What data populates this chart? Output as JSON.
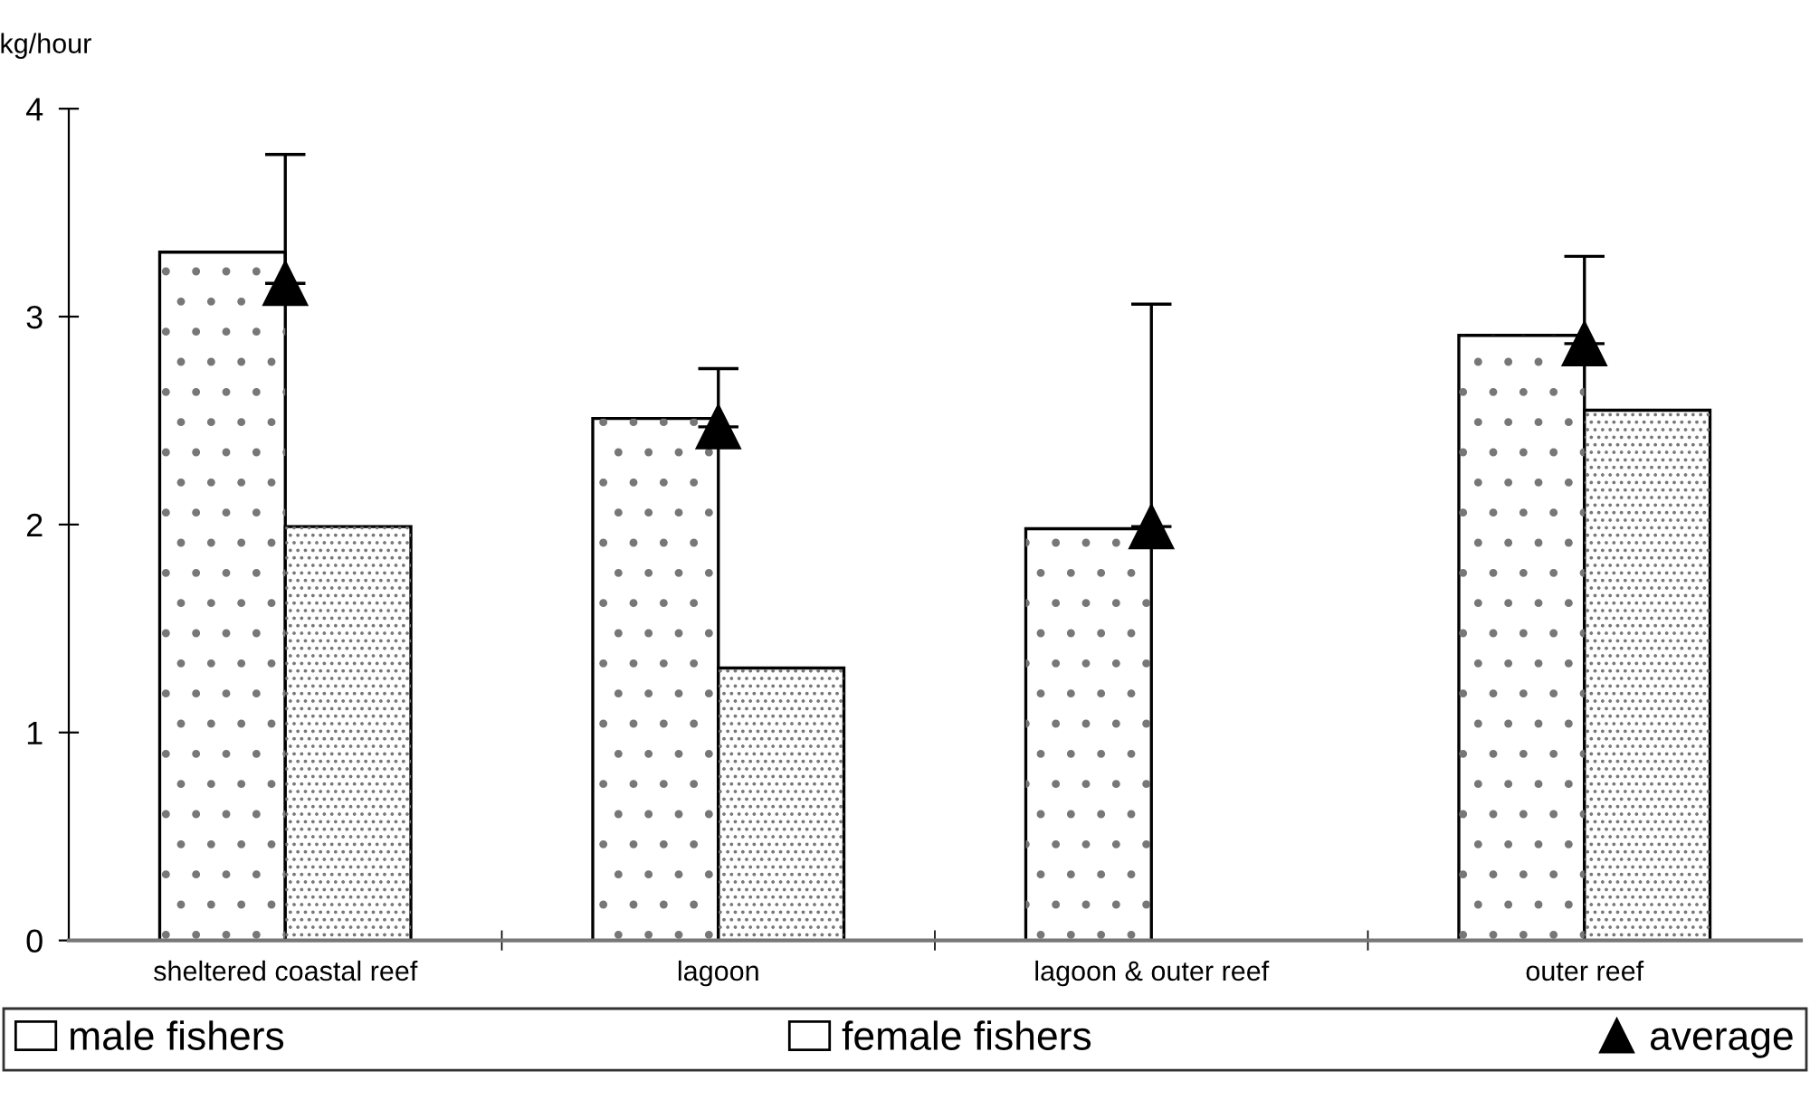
{
  "chart_data": {
    "type": "bar",
    "ylabel": "kg/hour",
    "categories": [
      "sheltered coastal reef",
      "lagoon",
      "lagoon & outer reef",
      "outer reef"
    ],
    "series": [
      {
        "name": "male fishers",
        "color": "#ffffff",
        "values": [
          3.31,
          2.51,
          1.98,
          2.91
        ]
      },
      {
        "name": "female fishers",
        "color": "#ffffff",
        "values": [
          1.99,
          1.31,
          null,
          2.55
        ]
      },
      {
        "name": "average",
        "type": "scatter",
        "color": "#000000",
        "x": [
          "sheltered coastal reef",
          "lagoon",
          "lagoon & outer reef",
          "outer reef"
        ],
        "values": [
          3.16,
          2.47,
          1.99,
          2.87
        ],
        "errors": [
          [
            3.16,
            3.78
          ],
          [
            2.47,
            2.75
          ],
          [
            1.99,
            3.06
          ],
          [
            2.87,
            3.29
          ]
        ]
      }
    ],
    "ylim": [
      0,
      4
    ],
    "yticks": [
      0,
      1,
      2,
      3,
      4
    ],
    "grid": false,
    "legend": "bottom",
    "marker": "triangle"
  }
}
